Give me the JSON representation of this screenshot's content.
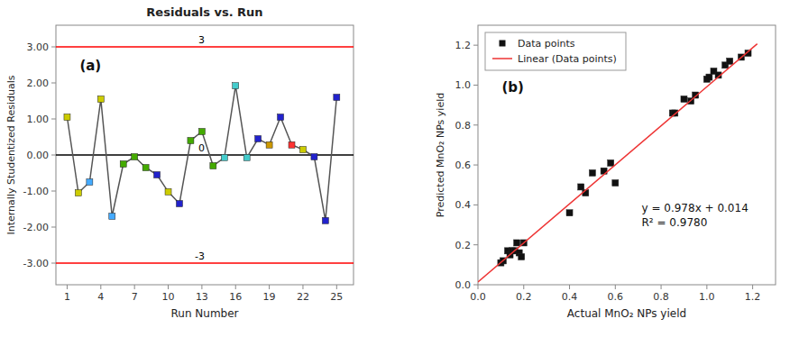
{
  "chart_data": [
    {
      "type": "line",
      "title": "Residuals vs. Run",
      "x_label": "Run Number",
      "y_label": "Internally Studentized Residuals",
      "xlim": [
        0,
        26.5
      ],
      "ylim": [
        -3.6,
        3.6
      ],
      "xticks": [
        1,
        4,
        7,
        10,
        13,
        16,
        19,
        22,
        25
      ],
      "yticks": [
        {
          "value": -3.0,
          "label": "-3.00"
        },
        {
          "value": -2.0,
          "label": "-2.00"
        },
        {
          "value": -1.0,
          "label": "-1.00"
        },
        {
          "value": 0.0,
          "label": "0.00"
        },
        {
          "value": 1.0,
          "label": "1.00"
        },
        {
          "value": 2.0,
          "label": "2.00"
        },
        {
          "value": 3.0,
          "label": "3.00"
        }
      ],
      "grid": false,
      "series": [
        {
          "type": "line",
          "color": "#555555",
          "marker": "square",
          "x": [
            1,
            2,
            3,
            4,
            5,
            6,
            7,
            8,
            9,
            10,
            11,
            12,
            13,
            14,
            15,
            16,
            17,
            18,
            19,
            20,
            21,
            22,
            23,
            24,
            25
          ],
          "values": [
            1.05,
            -1.05,
            -0.75,
            1.55,
            -1.7,
            -0.25,
            -0.05,
            -0.35,
            -0.55,
            -1.02,
            -1.35,
            0.4,
            0.65,
            -0.3,
            -0.07,
            1.92,
            -0.07,
            0.45,
            0.28,
            1.05,
            0.28,
            0.15,
            -0.05,
            -1.82,
            1.6
          ],
          "colors": [
            "#cccc00",
            "#cccc00",
            "#44aaff",
            "#cccc00",
            "#44aaff",
            "#44aa00",
            "#44aa00",
            "#44aa00",
            "#2222cc",
            "#cccc00",
            "#2222cc",
            "#44aa00",
            "#44aa00",
            "#44aa00",
            "#44cccc",
            "#44cccc",
            "#44cccc",
            "#2222cc",
            "#cc9900",
            "#2222cc",
            "#ff3333",
            "#cccc00",
            "#2222cc",
            "#2222cc",
            "#2222cc"
          ]
        }
      ],
      "hlines": [
        {
          "y": 0,
          "color": "#000000",
          "label": "0"
        },
        {
          "y": 3,
          "color": "#ff0000",
          "label": "3"
        },
        {
          "y": -3,
          "color": "#ff0000",
          "label": "-3"
        }
      ],
      "annotations": [
        {
          "text": "(a)"
        }
      ]
    },
    {
      "type": "scatter",
      "x_label": "Actual MnO₂ NPs yield",
      "y_label": "Predicted MnO₂ NPs yield",
      "xlim": [
        0.0,
        1.3
      ],
      "ylim": [
        0.0,
        1.3
      ],
      "xticks": [
        {
          "value": 0.0,
          "label": "0.0"
        },
        0.2,
        0.4,
        0.6,
        0.8,
        {
          "value": 1.0,
          "label": "1.0"
        },
        1.2
      ],
      "yticks": [
        {
          "value": 0.0,
          "label": "0.0"
        },
        0.2,
        0.4,
        0.6,
        0.8,
        {
          "value": 1.0,
          "label": "1.0"
        },
        1.2
      ],
      "grid": false,
      "legend": "upper-left",
      "series": [
        {
          "name": "Data points",
          "type": "scatter",
          "color": "#111111",
          "marker": "square",
          "x": [
            0.1,
            0.11,
            0.13,
            0.14,
            0.15,
            0.16,
            0.17,
            0.18,
            0.19,
            0.2,
            0.4,
            0.45,
            0.47,
            0.5,
            0.55,
            0.58,
            0.6,
            0.85,
            0.86,
            0.9,
            0.93,
            0.95,
            1.0,
            1.01,
            1.03,
            1.05,
            1.08,
            1.1,
            1.15,
            1.18
          ],
          "values": [
            0.11,
            0.12,
            0.17,
            0.15,
            0.17,
            0.17,
            0.21,
            0.16,
            0.14,
            0.21,
            0.36,
            0.49,
            0.46,
            0.56,
            0.57,
            0.61,
            0.51,
            0.86,
            0.86,
            0.93,
            0.92,
            0.95,
            1.03,
            1.04,
            1.07,
            1.05,
            1.1,
            1.12,
            1.14,
            1.16
          ]
        },
        {
          "name": "Linear (Data points)",
          "type": "line",
          "color": "#ee3333",
          "x": [
            0.0,
            1.22
          ],
          "values": [
            0.014,
            1.20716
          ]
        }
      ],
      "annotations": [
        {
          "text": "(b)"
        },
        {
          "text": "y = 0.978x + 0.014\nR² = 0.9780"
        }
      ]
    }
  ]
}
